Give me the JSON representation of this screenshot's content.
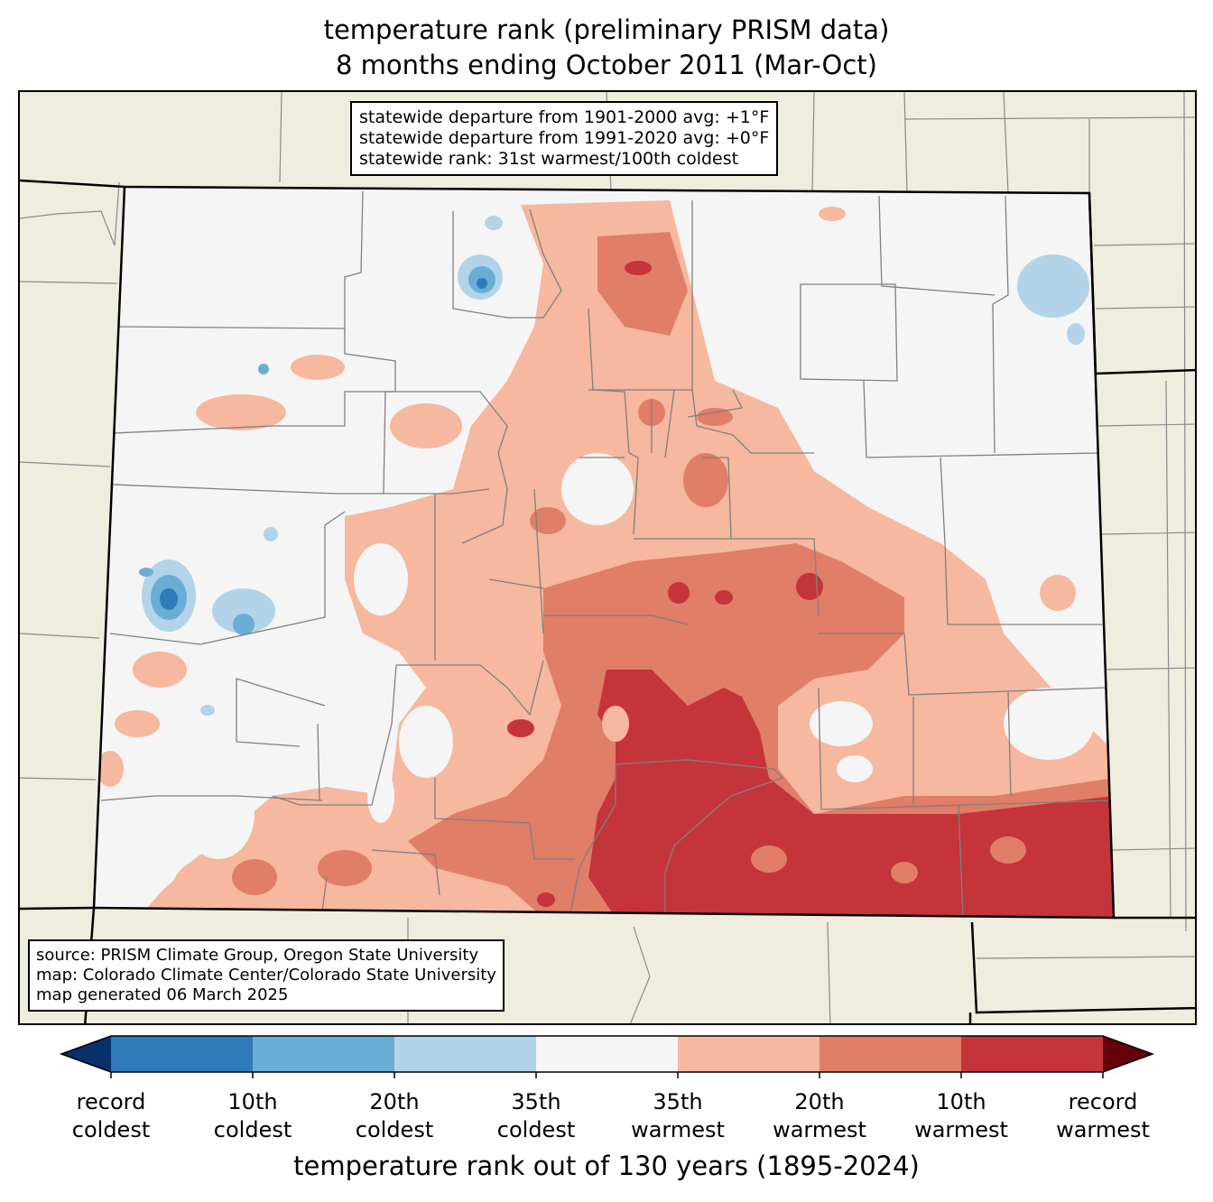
{
  "title": {
    "line1": "temperature rank (preliminary PRISM data)",
    "line2": "8 months ending October 2011 (Mar-Oct)"
  },
  "stats_box": {
    "line1": "statewide departure from 1901-2000 avg: +1°F",
    "line2": "statewide departure from 1991-2020 avg: +0°F",
    "line3": "statewide rank: 31st warmest/100th coldest"
  },
  "source_box": {
    "line1": "source: PRISM Climate Group, Oregon State University",
    "line2": "map: Colorado Climate Center/Colorado State University",
    "line3": "map generated 06 March 2025"
  },
  "colorbar": {
    "label": "temperature rank out of 130 years (1895-2024)",
    "colors": [
      "#08306b",
      "#2f7ab9",
      "#6aaed6",
      "#b3d3e8",
      "#f5f5f5",
      "#f6b89e",
      "#e07e67",
      "#c5343a",
      "#67000d"
    ],
    "ticks": [
      {
        "line1": "record",
        "line2": "coldest"
      },
      {
        "line1": "10th",
        "line2": "coldest"
      },
      {
        "line1": "20th",
        "line2": "coldest"
      },
      {
        "line1": "35th",
        "line2": "coldest"
      },
      {
        "line1": "35th",
        "line2": "warmest"
      },
      {
        "line1": "20th",
        "line2": "warmest"
      },
      {
        "line1": "10th",
        "line2": "warmest"
      },
      {
        "line1": "record",
        "line2": "warmest"
      }
    ]
  },
  "map": {
    "background_color": "#efedde",
    "state_fill": "#f5f5f5",
    "light_warm": "#f6b89e",
    "mid_warm": "#e07e67",
    "strong_warm": "#c5343a",
    "light_cold": "#b3d3e8",
    "mid_cold": "#6aaed6",
    "strong_cold": "#2f7ab9"
  }
}
